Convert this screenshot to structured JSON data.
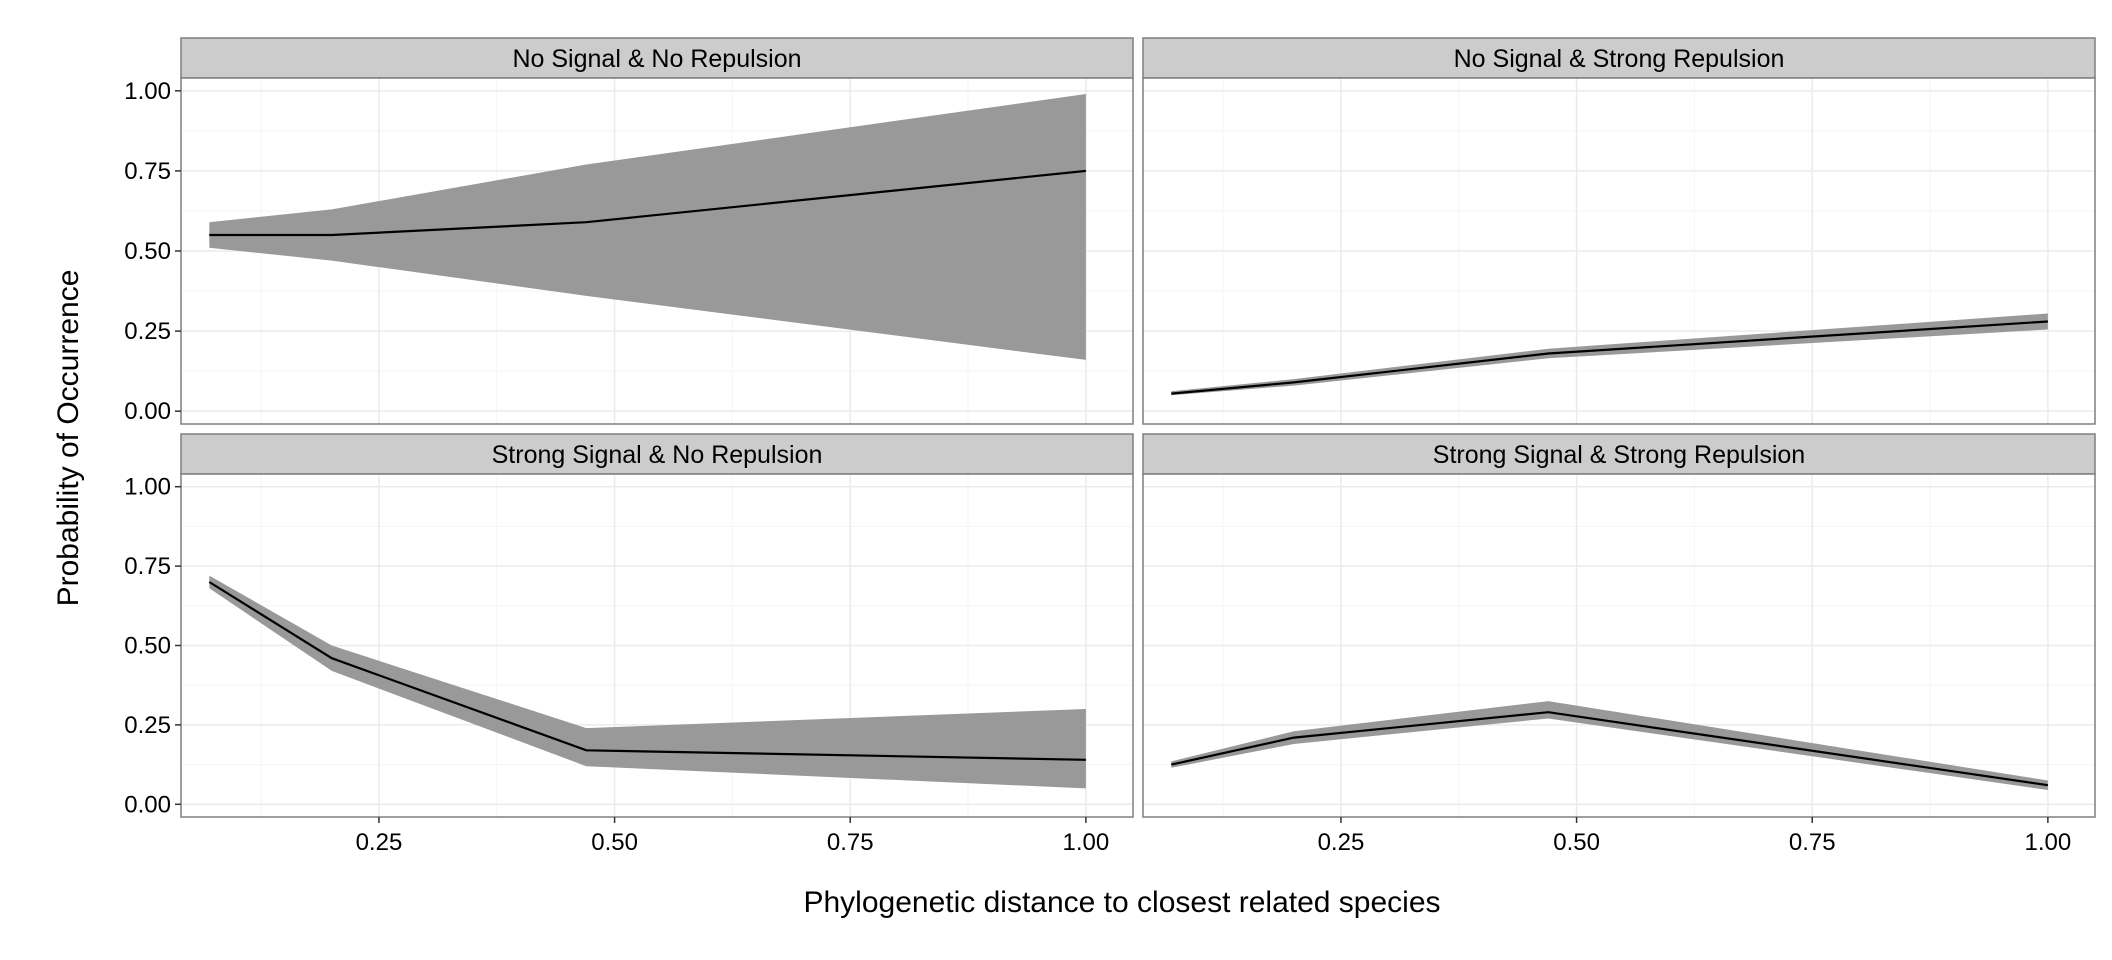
{
  "chart_data": {
    "type": "area",
    "xlabel": "Phylogenetic distance to closest related species",
    "ylabel": "Probability of Occurrence",
    "xlim": [
      0.04,
      1.05
    ],
    "ylim": [
      -0.04,
      1.04
    ],
    "x_ticks": [
      "0.25",
      "0.50",
      "0.75",
      "1.00"
    ],
    "y_ticks": [
      "0.00",
      "0.25",
      "0.50",
      "0.75",
      "1.00"
    ],
    "grid": true,
    "colors": {
      "ribbon": "#999999",
      "line": "#000000",
      "strip": "#cccccc",
      "grid_major": "#ebebeb",
      "grid_minor": "#f5f5f5",
      "panel_border": "#7f7f7f"
    },
    "panels": [
      {
        "title": "No Signal & No Repulsion",
        "x": [
          0.07,
          0.2,
          0.47,
          1.0
        ],
        "y": [
          0.55,
          0.55,
          0.59,
          0.75
        ],
        "ymin": [
          0.51,
          0.47,
          0.36,
          0.16
        ],
        "ymax": [
          0.59,
          0.63,
          0.77,
          0.99
        ]
      },
      {
        "title": "No Signal & Strong Repulsion",
        "x": [
          0.07,
          0.2,
          0.47,
          1.0
        ],
        "y": [
          0.055,
          0.09,
          0.18,
          0.28
        ],
        "ymin": [
          0.05,
          0.08,
          0.165,
          0.255
        ],
        "ymax": [
          0.062,
          0.1,
          0.195,
          0.305
        ]
      },
      {
        "title": "Strong Signal & No Repulsion",
        "x": [
          0.07,
          0.2,
          0.47,
          1.0
        ],
        "y": [
          0.7,
          0.46,
          0.17,
          0.14
        ],
        "ymin": [
          0.68,
          0.42,
          0.12,
          0.05
        ],
        "ymax": [
          0.72,
          0.5,
          0.24,
          0.3
        ]
      },
      {
        "title": "Strong Signal & Strong Repulsion",
        "x": [
          0.07,
          0.2,
          0.47,
          1.0
        ],
        "y": [
          0.125,
          0.21,
          0.29,
          0.06
        ],
        "ymin": [
          0.115,
          0.19,
          0.27,
          0.045
        ],
        "ymax": [
          0.135,
          0.23,
          0.325,
          0.075
        ]
      }
    ]
  }
}
